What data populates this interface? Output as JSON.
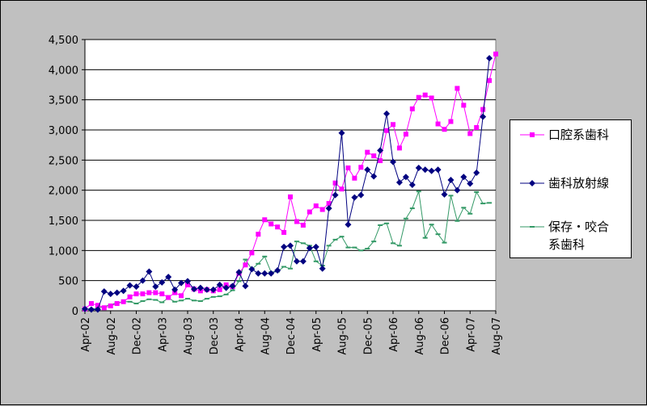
{
  "chart_data": {
    "type": "line",
    "title": "",
    "xlabel": "",
    "ylabel": "",
    "ylim": [
      0,
      4500
    ],
    "yticks": [
      "0",
      "500",
      "1,000",
      "1,500",
      "2,000",
      "2,500",
      "3,000",
      "3,500",
      "4,000",
      "4,500"
    ],
    "x_tick_labels": [
      "Apr-02",
      "Aug-02",
      "Dec-02",
      "Apr-03",
      "Aug-03",
      "Dec-03",
      "Apr-04",
      "Aug-04",
      "Dec-04",
      "Apr-05",
      "Aug-05",
      "Dec-05",
      "Apr-06",
      "Aug-06",
      "Dec-06",
      "Apr-07",
      "Aug-07"
    ],
    "x_start": "Apr-02",
    "x_step_months": 1,
    "grid": "horizontal",
    "legend_position": "right",
    "series": [
      {
        "name": "口腔系歯科",
        "color": "#ff00ff",
        "marker": "square",
        "values": [
          30,
          120,
          90,
          50,
          80,
          120,
          150,
          230,
          280,
          280,
          300,
          300,
          280,
          220,
          300,
          250,
          430,
          360,
          330,
          350,
          330,
          350,
          430,
          400,
          620,
          760,
          960,
          1270,
          1510,
          1440,
          1390,
          1300,
          1890,
          1480,
          1420,
          1640,
          1740,
          1680,
          1780,
          2120,
          2020,
          2370,
          2200,
          2380,
          2630,
          2570,
          2490,
          2990,
          3090,
          2700,
          2930,
          3350,
          3540,
          3580,
          3530,
          3100,
          3010,
          3140,
          3690,
          3410,
          2940,
          3040,
          3340,
          3820,
          4260
        ]
      },
      {
        "name": "歯科放射線",
        "color": "#000080",
        "marker": "diamond",
        "values": [
          30,
          20,
          20,
          320,
          280,
          300,
          330,
          420,
          400,
          500,
          650,
          400,
          470,
          560,
          350,
          460,
          490,
          360,
          380,
          350,
          350,
          430,
          380,
          410,
          640,
          410,
          690,
          620,
          620,
          620,
          670,
          1060,
          1080,
          820,
          820,
          1040,
          1060,
          700,
          1700,
          1920,
          2950,
          1430,
          1880,
          1920,
          2340,
          2230,
          2660,
          3270,
          2470,
          2130,
          2220,
          2090,
          2370,
          2340,
          2320,
          2340,
          1930,
          2170,
          2000,
          2220,
          2110,
          2290,
          3220,
          4190
        ]
      },
      {
        "name": "保存・咬合系歯科",
        "color": "#339966",
        "marker": "dash",
        "values": [
          30,
          30,
          40,
          70,
          100,
          130,
          150,
          150,
          120,
          160,
          190,
          180,
          140,
          210,
          150,
          170,
          200,
          170,
          160,
          200,
          230,
          240,
          270,
          340,
          490,
          850,
          690,
          780,
          900,
          640,
          650,
          730,
          700,
          1150,
          1120,
          1080,
          820,
          750,
          1080,
          1180,
          1230,
          1050,
          1050,
          1000,
          1030,
          1150,
          1420,
          1450,
          1120,
          1080,
          1530,
          1700,
          1980,
          1210,
          1430,
          1270,
          1130,
          1910,
          1490,
          1710,
          1610,
          1970,
          1780,
          1790
        ]
      }
    ]
  },
  "legend": {
    "entries": [
      {
        "lines": [
          "口腔系歯科"
        ],
        "color": "#ff00ff",
        "marker": "square"
      },
      {
        "lines": [
          "歯科放射線"
        ],
        "color": "#000080",
        "marker": "diamond"
      },
      {
        "lines": [
          "保存・咬合",
          "系歯科"
        ],
        "color": "#339966",
        "marker": "dash"
      }
    ]
  }
}
